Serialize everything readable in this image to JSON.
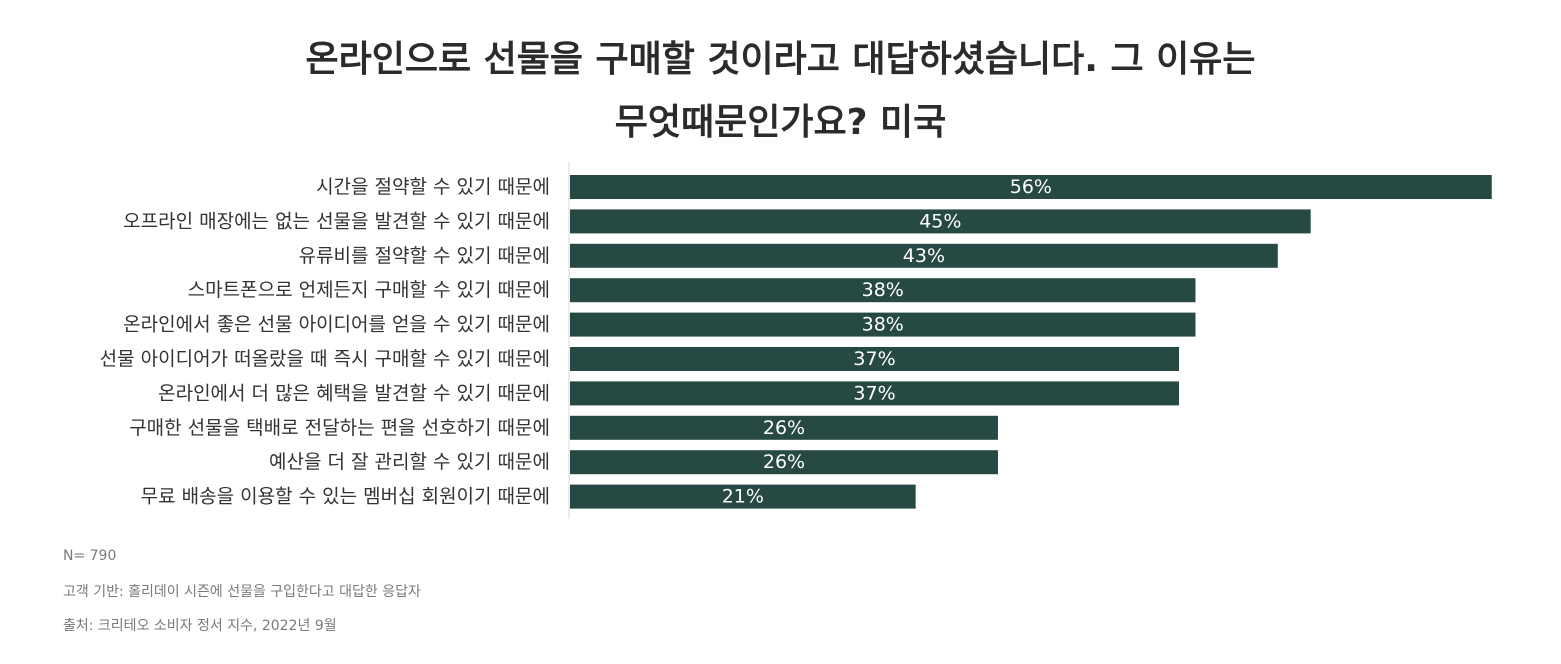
{
  "chart_data": {
    "type": "bar",
    "orientation": "horizontal",
    "title_lines": [
      "온라인으로 선물을 구매할 것이라고 대답하셨습니다. 그 이유는",
      "무엇때문인가요? 미국"
    ],
    "categories": [
      "시간을 절약할 수 있기 때문에",
      "오프라인 매장에는 없는 선물을 발견할 수 있기 때문에",
      "유류비를 절약할 수 있기 때문에",
      "스마트폰으로 언제든지 구매할 수 있기 때문에",
      "온라인에서 좋은 선물 아이디어를 얻을 수 있기 때문에",
      "선물 아이디어가 떠올랐을 때 즉시 구매할 수 있기 때문에",
      "온라인에서 더 많은 혜택을 발견할 수 있기 때문에",
      "구매한 선물을 택배로 전달하는 편을 선호하기 때문에",
      "예산을 더 잘 관리할 수 있기 때문에",
      "무료 배송을 이용할 수 있는 멤버십 회원이기 때문에"
    ],
    "values": [
      56,
      45,
      43,
      38,
      38,
      37,
      37,
      26,
      26,
      21
    ],
    "value_labels": [
      "56%",
      "45%",
      "43%",
      "38%",
      "38%",
      "37%",
      "37%",
      "26%",
      "26%",
      "21%"
    ],
    "unit": "%",
    "bar_color": "#264a43",
    "grid": false,
    "legend": "none"
  },
  "footnotes": {
    "n": "N= 790",
    "base": "고객 기반: 홀리데이 시즌에 선물을 구입한다고 대답한 응답자",
    "source": "출처: 크리테오 소비자 정서 지수, 2022년 9월"
  }
}
